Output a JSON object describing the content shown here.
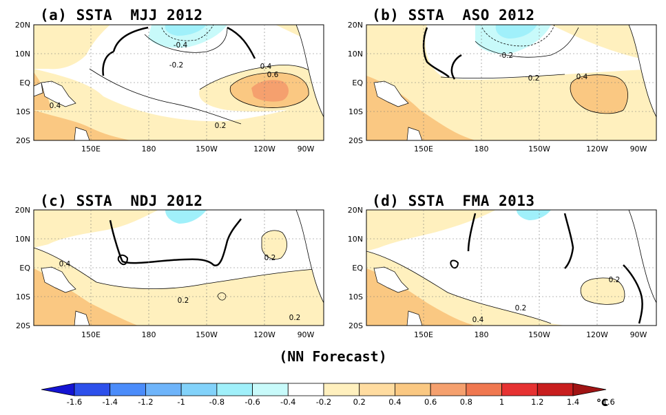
{
  "panels": [
    {
      "id": "a",
      "title": "(a) SSTA  MJJ 2012",
      "contour_labels": [
        "-0.4",
        "-0.2",
        "0.4",
        "0.6",
        "0.4",
        "0.2"
      ]
    },
    {
      "id": "b",
      "title": "(b) SSTA  ASO 2012",
      "contour_labels": [
        "-0.2",
        "0.2",
        "0.4"
      ]
    },
    {
      "id": "c",
      "title": "(c) SSTA  NDJ 2012",
      "contour_labels": [
        "0.4",
        "0.2",
        "0.2",
        "0.2"
      ]
    },
    {
      "id": "d",
      "title": "(d) SSTA  FMA 2013",
      "contour_labels": [
        "0.2",
        "0.2",
        "0.4"
      ]
    }
  ],
  "axes": {
    "lat_labels": [
      "20N",
      "10N",
      "EQ",
      "10S",
      "20S"
    ],
    "lon_labels": [
      "150E",
      "180",
      "150W",
      "120W",
      "90W"
    ]
  },
  "forecast_label": "(NN Forecast)",
  "colorbar": {
    "unit": "°C",
    "tick_labels": [
      "-1.6",
      "-1.4",
      "-1.2",
      "-1",
      "-0.8",
      "-0.6",
      "-0.4",
      "-0.2",
      "0.2",
      "0.4",
      "0.6",
      "0.8",
      "1",
      "1.2",
      "1.4",
      "1.6"
    ],
    "colors": [
      "#1414d2",
      "#2d50eb",
      "#4b8cfa",
      "#6eb4fa",
      "#82d2fa",
      "#a0f0fa",
      "#c8fafa",
      "#ffffff",
      "#fff0be",
      "#ffdca0",
      "#fac882",
      "#f5a06e",
      "#f07850",
      "#e63232",
      "#c81e1e",
      "#a01414"
    ]
  },
  "colors": {
    "cool1": "#c8fafa",
    "cool2": "#a0f0fa",
    "warm1": "#fff0be",
    "warm2": "#ffdca0",
    "warm3": "#fac882",
    "warm4": "#f5a06e"
  }
}
